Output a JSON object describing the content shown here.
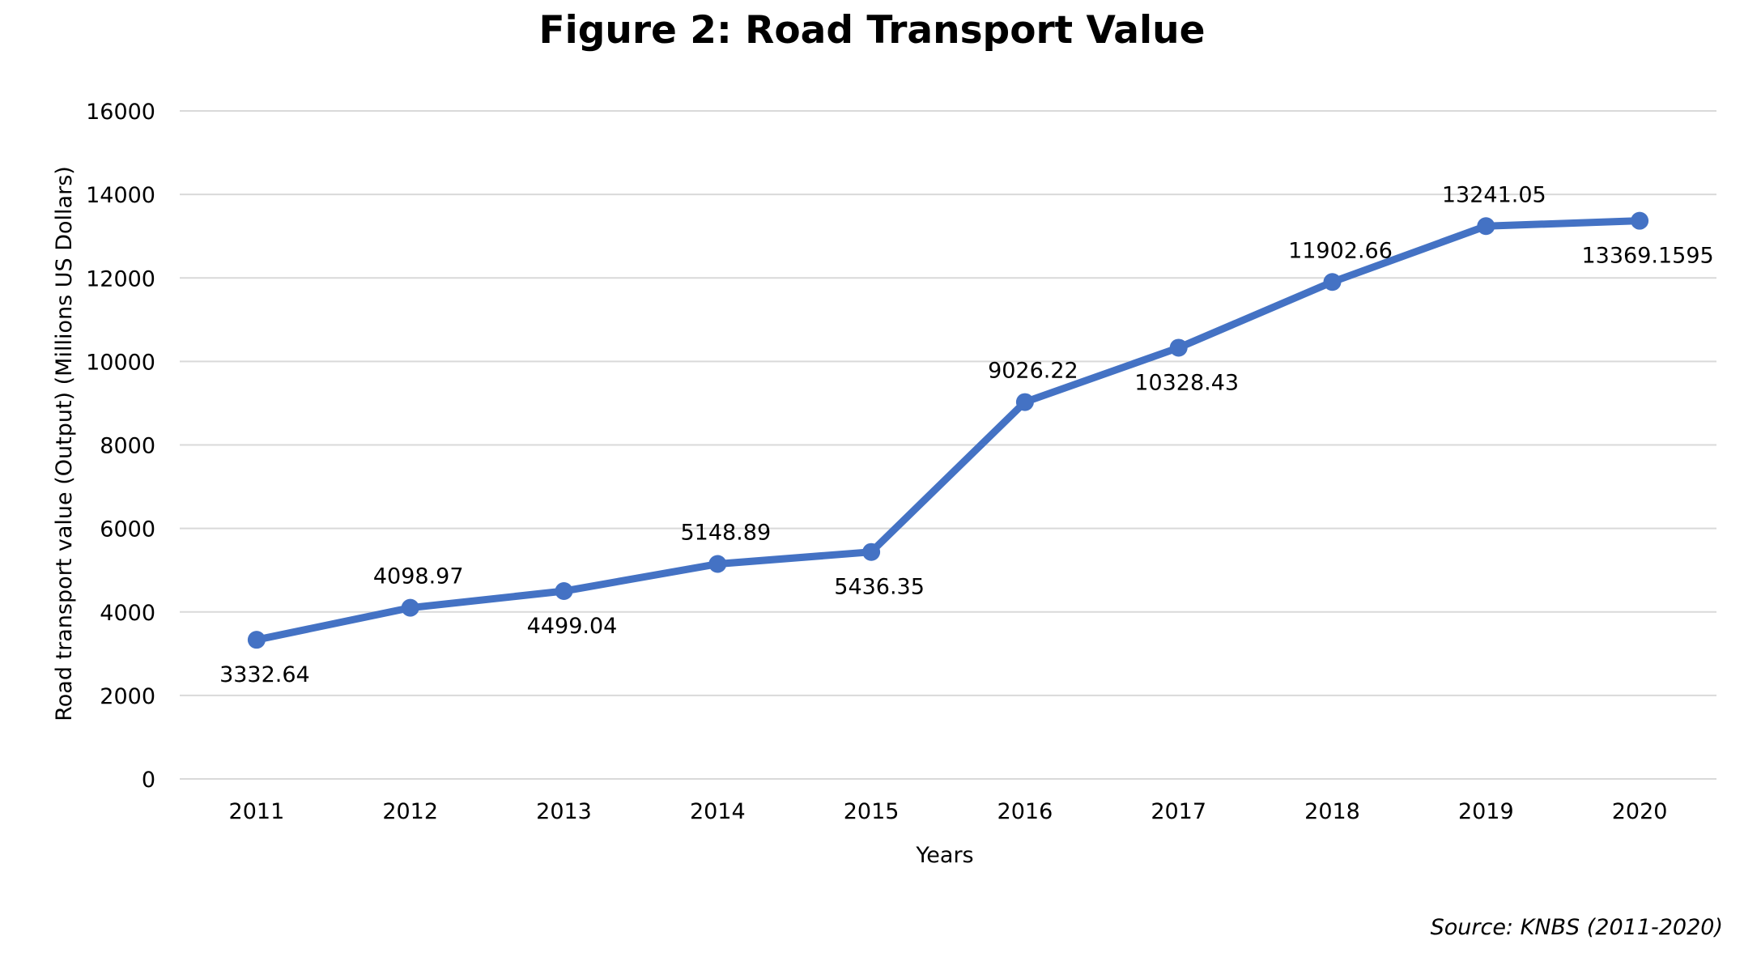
{
  "chart_data": {
    "type": "line",
    "title": "Figure 2: Road Transport Value",
    "xlabel": "Years",
    "ylabel": "Road transport value (Output) (Millions US Dollars)",
    "categories": [
      "2011",
      "2012",
      "2013",
      "2014",
      "2015",
      "2016",
      "2017",
      "2018",
      "2019",
      "2020"
    ],
    "series": [
      {
        "values": [
          3332.64,
          4098.97,
          4499.04,
          5148.89,
          5436.35,
          9026.22,
          10328.43,
          11902.66,
          13241.05,
          13369.1595
        ],
        "labels": [
          "3332.64",
          "4098.97",
          "4499.04",
          "5148.89",
          "5436.35",
          "9026.22",
          "10328.43",
          "11902.66",
          "13241.05",
          "13369.1595"
        ],
        "label_positions": [
          "below",
          "above",
          "below",
          "above",
          "below",
          "above",
          "below",
          "above",
          "above",
          "below"
        ]
      }
    ],
    "ylim": [
      0,
      16000
    ],
    "yticks": [
      "0",
      "2000",
      "4000",
      "6000",
      "8000",
      "10000",
      "12000",
      "14000",
      "16000"
    ],
    "grid": true,
    "legend": "none",
    "color": "#4472C4",
    "gridColor": "#D9D9D9",
    "source": "Source: KNBS (2011-2020)"
  }
}
